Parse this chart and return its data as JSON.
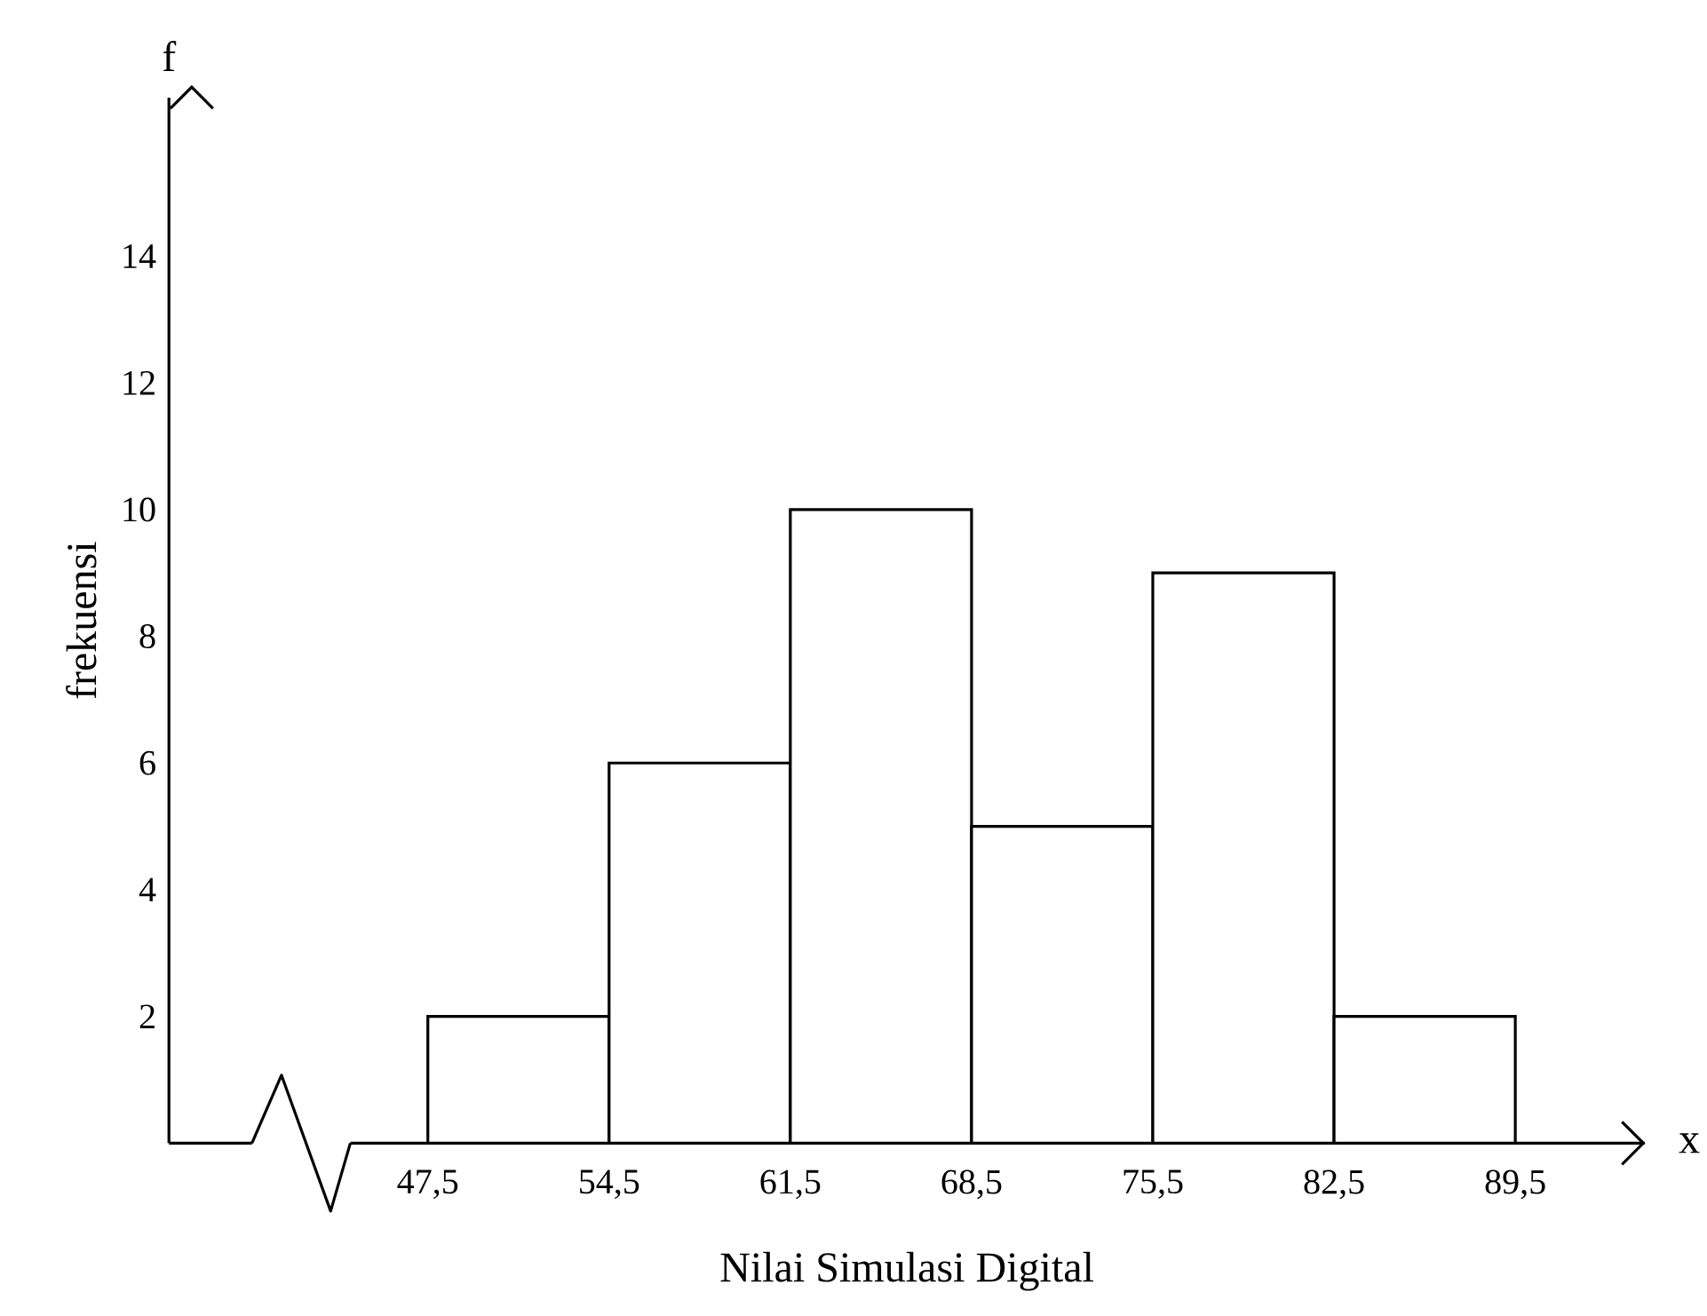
{
  "chart_data": {
    "type": "histogram",
    "xlabel": "Nilai Simulasi Digital",
    "ylabel": "frekuensi",
    "annotations": [
      "f",
      "x"
    ],
    "bins": [
      47.5,
      54.5,
      61.5,
      68.5,
      75.5,
      82.5,
      89.5
    ],
    "values": [
      2,
      6,
      10,
      5,
      9,
      2
    ],
    "color": "#ffffff",
    "xlim": [
      37.5,
      94.5
    ],
    "ylim": [
      0,
      16.5
    ],
    "xticks": [
      {
        "value": 47.5,
        "label": "47,5"
      },
      {
        "value": 54.5,
        "label": "54,5"
      },
      {
        "value": 61.5,
        "label": "61,5"
      },
      {
        "value": 68.5,
        "label": "68,5"
      },
      {
        "value": 75.5,
        "label": "75,5"
      },
      {
        "value": 82.5,
        "label": "82,5"
      },
      {
        "value": 89.5,
        "label": "89,5"
      }
    ],
    "yticks": [
      2,
      4,
      6,
      8,
      10,
      12,
      14
    ]
  }
}
